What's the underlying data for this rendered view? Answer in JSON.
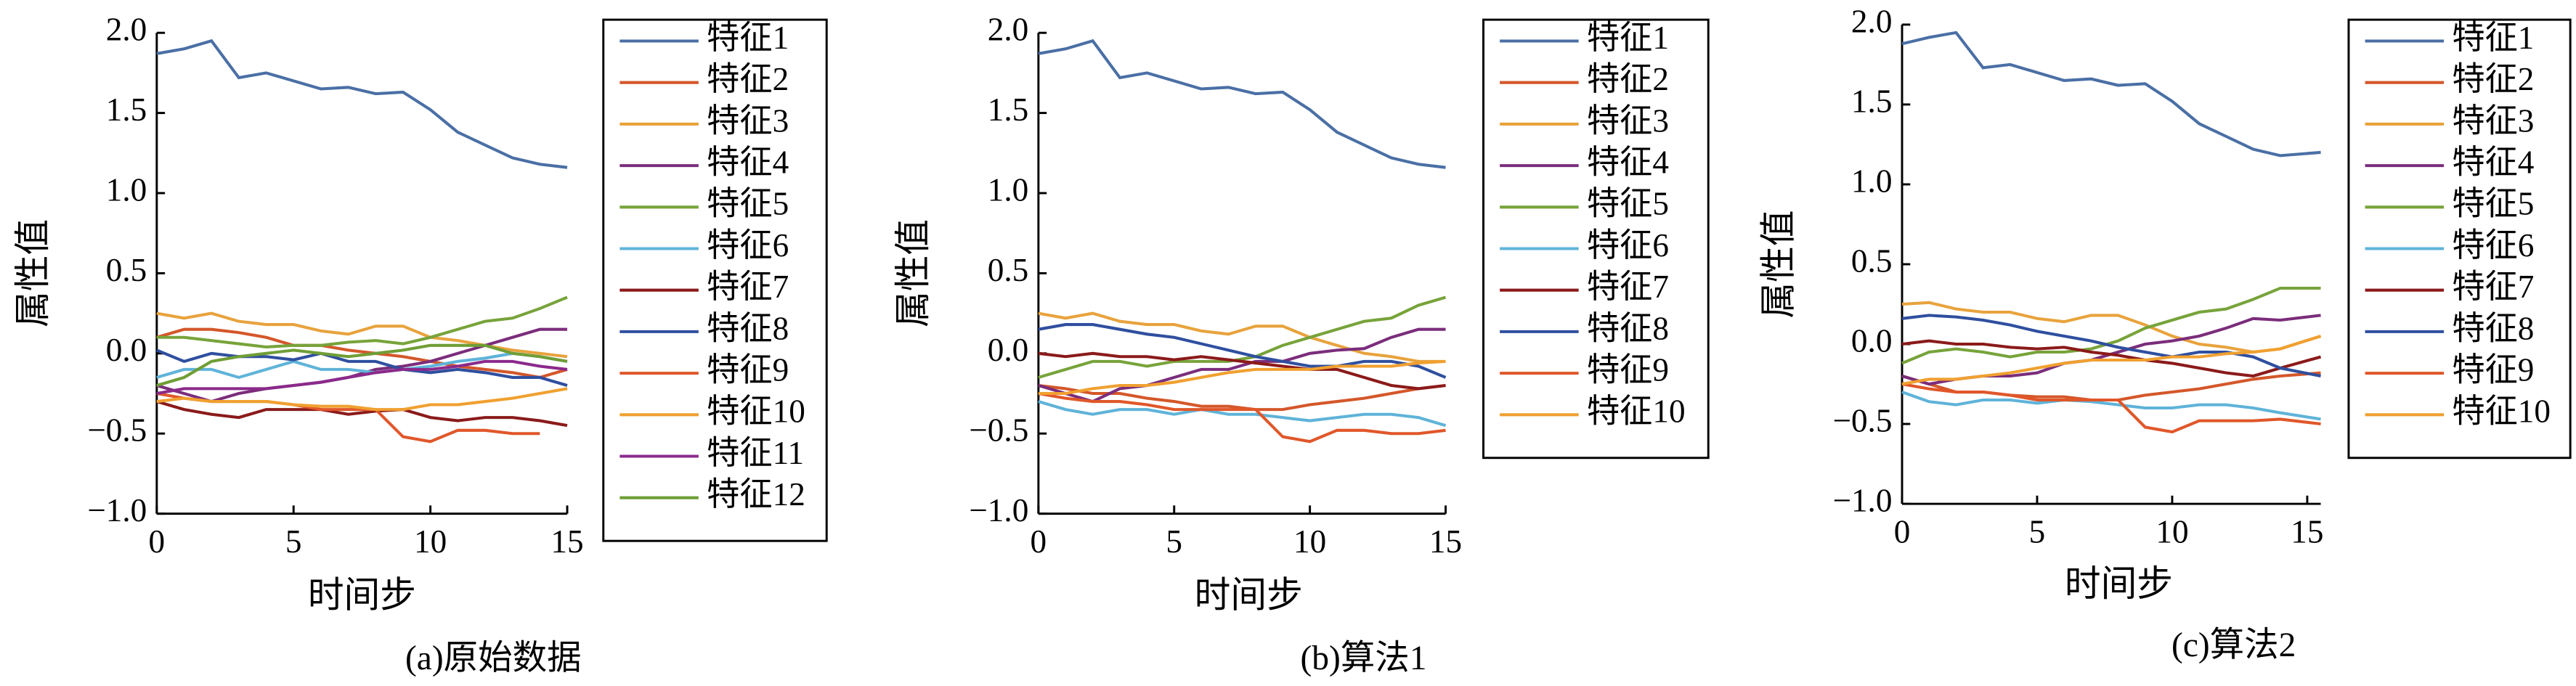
{
  "chart_data": [
    {
      "type": "line",
      "caption": "(a)原始数据",
      "xlabel": "时间步",
      "ylabel": "属性值",
      "x": [
        0,
        1,
        2,
        3,
        4,
        5,
        6,
        7,
        8,
        9,
        10,
        11,
        12,
        13,
        14,
        15
      ],
      "xlim": [
        0,
        15
      ],
      "xticks": [
        0,
        5,
        10,
        15
      ],
      "ylim": [
        -1,
        2
      ],
      "yticks": [
        {
          "value": 2,
          "label": "2.0"
        },
        {
          "value": 1.5,
          "label": "1.5"
        },
        {
          "value": 1,
          "label": "1.0"
        },
        {
          "value": 0.5,
          "label": "0.5"
        },
        {
          "value": 0,
          "label": "0.0"
        },
        {
          "value": -0.5,
          "label": "−0.5"
        },
        {
          "value": -1,
          "label": "−1.0"
        }
      ],
      "legend": "right",
      "series": [
        {
          "name": "特征1",
          "color": "#4a6fa5",
          "values": [
            1.87,
            1.9,
            1.95,
            1.72,
            1.75,
            1.7,
            1.65,
            1.66,
            1.62,
            1.63,
            1.52,
            1.38,
            1.3,
            1.22,
            1.18,
            1.16
          ]
        },
        {
          "name": "特征2",
          "color": "#d4572a",
          "values": [
            0.1,
            0.15,
            0.15,
            0.13,
            0.1,
            0.05,
            0.05,
            0.02,
            0,
            -0.02,
            -0.05,
            -0.08,
            -0.1,
            -0.12,
            -0.15,
            -0.1
          ]
        },
        {
          "name": "特征3",
          "color": "#e8a33d",
          "values": [
            0.25,
            0.22,
            0.25,
            0.2,
            0.18,
            0.18,
            0.14,
            0.12,
            0.17,
            0.17,
            0.1,
            0.08,
            0.05,
            0.02,
            0,
            -0.02
          ]
        },
        {
          "name": "特征4",
          "color": "#7b2d7b",
          "values": [
            -0.2,
            -0.25,
            -0.3,
            -0.25,
            -0.22,
            -0.2,
            -0.18,
            -0.15,
            -0.1,
            -0.08,
            -0.05,
            0,
            0.05,
            0.1,
            0.15,
            0.15
          ]
        },
        {
          "name": "特征5",
          "color": "#77a33a",
          "values": [
            0.1,
            0.1,
            0.08,
            0.06,
            0.04,
            0.05,
            0.05,
            0.07,
            0.08,
            0.06,
            0.1,
            0.15,
            0.2,
            0.22,
            0.28,
            0.35
          ]
        },
        {
          "name": "特征6",
          "color": "#5fb3d9",
          "values": [
            -0.15,
            -0.1,
            -0.1,
            -0.15,
            -0.1,
            -0.05,
            -0.1,
            -0.1,
            -0.12,
            -0.1,
            -0.08,
            -0.05,
            -0.03,
            0,
            -0.02,
            -0.05
          ]
        },
        {
          "name": "特征7",
          "color": "#8b1a1a",
          "values": [
            -0.3,
            -0.35,
            -0.38,
            -0.4,
            -0.35,
            -0.35,
            -0.35,
            -0.38,
            -0.36,
            -0.35,
            -0.4,
            -0.42,
            -0.4,
            -0.4,
            -0.42,
            -0.45
          ]
        },
        {
          "name": "特征8",
          "color": "#2f4f9f",
          "values": [
            0.02,
            -0.05,
            0,
            -0.02,
            -0.02,
            -0.04,
            0,
            -0.05,
            -0.05,
            -0.1,
            -0.12,
            -0.1,
            -0.12,
            -0.15,
            -0.15,
            -0.2
          ]
        },
        {
          "name": "特征9",
          "color": "#e0572a",
          "values": [
            -0.25,
            -0.28,
            -0.3,
            -0.3,
            -0.3,
            -0.32,
            -0.35,
            -0.35,
            -0.35,
            -0.52,
            -0.55,
            -0.48,
            -0.48,
            -0.5,
            -0.5,
            null
          ]
        },
        {
          "name": "特征10",
          "color": "#f0a030",
          "values": [
            -0.3,
            -0.28,
            -0.3,
            -0.3,
            -0.3,
            -0.32,
            -0.33,
            -0.33,
            -0.35,
            -0.35,
            -0.32,
            -0.32,
            -0.3,
            -0.28,
            -0.25,
            -0.22
          ]
        },
        {
          "name": "特征11",
          "color": "#8b2a8b",
          "values": [
            -0.25,
            -0.22,
            -0.22,
            -0.22,
            -0.22,
            -0.2,
            -0.18,
            -0.15,
            -0.12,
            -0.1,
            -0.1,
            -0.08,
            -0.05,
            -0.05,
            -0.08,
            -0.1
          ]
        },
        {
          "name": "特征12",
          "color": "#6f9e35",
          "values": [
            -0.2,
            -0.15,
            -0.05,
            -0.02,
            0,
            0.02,
            0,
            -0.02,
            0,
            0.02,
            0.05,
            0.05,
            0.05,
            0,
            -0.02,
            -0.05
          ]
        }
      ]
    },
    {
      "type": "line",
      "caption": "(b)算法1",
      "xlabel": "时间步",
      "ylabel": "属性值",
      "x": [
        0,
        1,
        2,
        3,
        4,
        5,
        6,
        7,
        8,
        9,
        10,
        11,
        12,
        13,
        14,
        15
      ],
      "xlim": [
        0,
        15
      ],
      "xticks": [
        0,
        5,
        10,
        15
      ],
      "ylim": [
        -1,
        2
      ],
      "yticks": [
        {
          "value": 2,
          "label": "2.0"
        },
        {
          "value": 1.5,
          "label": "1.5"
        },
        {
          "value": 1,
          "label": "1.0"
        },
        {
          "value": 0.5,
          "label": "0.5"
        },
        {
          "value": 0,
          "label": "0.0"
        },
        {
          "value": -0.5,
          "label": "−0.5"
        },
        {
          "value": -1,
          "label": "−1.0"
        }
      ],
      "legend": "right",
      "series": [
        {
          "name": "特征1",
          "color": "#4a6fa5",
          "values": [
            1.87,
            1.9,
            1.95,
            1.72,
            1.75,
            1.7,
            1.65,
            1.66,
            1.62,
            1.63,
            1.52,
            1.38,
            1.3,
            1.22,
            1.18,
            1.16
          ]
        },
        {
          "name": "特征2",
          "color": "#d4572a",
          "values": [
            -0.2,
            -0.22,
            -0.25,
            -0.25,
            -0.28,
            -0.3,
            -0.33,
            -0.33,
            -0.35,
            -0.35,
            -0.32,
            -0.3,
            -0.28,
            -0.25,
            -0.22,
            -0.2
          ]
        },
        {
          "name": "特征3",
          "color": "#e8a33d",
          "values": [
            0.25,
            0.22,
            0.25,
            0.2,
            0.18,
            0.18,
            0.14,
            0.12,
            0.17,
            0.17,
            0.1,
            0.05,
            0,
            -0.02,
            -0.05,
            -0.05
          ]
        },
        {
          "name": "特征4",
          "color": "#7b2d7b",
          "values": [
            -0.2,
            -0.25,
            -0.3,
            -0.22,
            -0.2,
            -0.15,
            -0.1,
            -0.1,
            -0.05,
            -0.05,
            0,
            0.02,
            0.03,
            0.1,
            0.15,
            0.15
          ]
        },
        {
          "name": "特征5",
          "color": "#77a33a",
          "values": [
            -0.15,
            -0.1,
            -0.05,
            -0.05,
            -0.08,
            -0.05,
            -0.05,
            -0.05,
            -0.02,
            0.05,
            0.1,
            0.15,
            0.2,
            0.22,
            0.3,
            0.35
          ]
        },
        {
          "name": "特征6",
          "color": "#5fb3d9",
          "values": [
            -0.3,
            -0.35,
            -0.38,
            -0.35,
            -0.35,
            -0.38,
            -0.35,
            -0.38,
            -0.38,
            -0.4,
            -0.42,
            -0.4,
            -0.38,
            -0.38,
            -0.4,
            -0.45
          ]
        },
        {
          "name": "特征7",
          "color": "#8b1a1a",
          "values": [
            0,
            -0.02,
            0,
            -0.02,
            -0.02,
            -0.04,
            -0.02,
            -0.04,
            -0.06,
            -0.08,
            -0.1,
            -0.1,
            -0.15,
            -0.2,
            -0.22,
            -0.2
          ]
        },
        {
          "name": "特征8",
          "color": "#2f4f9f",
          "values": [
            0.15,
            0.18,
            0.18,
            0.15,
            0.12,
            0.1,
            0.06,
            0.02,
            -0.02,
            -0.05,
            -0.08,
            -0.08,
            -0.05,
            -0.05,
            -0.08,
            -0.15
          ]
        },
        {
          "name": "特征9",
          "color": "#e0572a",
          "values": [
            -0.25,
            -0.28,
            -0.3,
            -0.3,
            -0.32,
            -0.35,
            -0.35,
            -0.35,
            -0.35,
            -0.52,
            -0.55,
            -0.48,
            -0.48,
            -0.5,
            -0.5,
            -0.48
          ]
        },
        {
          "name": "特征10",
          "color": "#f0a030",
          "values": [
            -0.25,
            -0.25,
            -0.22,
            -0.2,
            -0.2,
            -0.18,
            -0.15,
            -0.12,
            -0.1,
            -0.1,
            -0.1,
            -0.08,
            -0.08,
            -0.08,
            -0.06,
            -0.05
          ]
        }
      ]
    },
    {
      "type": "line",
      "caption": "(c)算法2",
      "xlabel": "时间步",
      "ylabel": "属性值",
      "x": [
        0,
        1,
        2,
        3,
        4,
        5,
        6,
        7,
        8,
        9,
        10,
        11,
        12,
        13,
        14,
        15.5
      ],
      "xlim": [
        0,
        15.5
      ],
      "xticks": [
        0,
        5,
        10,
        15
      ],
      "ylim": [
        -1,
        2
      ],
      "yticks": [
        {
          "value": 2,
          "label": "2.0"
        },
        {
          "value": 1.5,
          "label": "1.5"
        },
        {
          "value": 1,
          "label": "1.0"
        },
        {
          "value": 0.5,
          "label": "0.5"
        },
        {
          "value": 0,
          "label": "0.0"
        },
        {
          "value": -0.5,
          "label": "−0.5"
        },
        {
          "value": -1,
          "label": "−1.0"
        }
      ],
      "legend": "right",
      "series": [
        {
          "name": "特征1",
          "color": "#4a6fa5",
          "values": [
            1.88,
            1.92,
            1.95,
            1.73,
            1.75,
            1.7,
            1.65,
            1.66,
            1.62,
            1.63,
            1.52,
            1.38,
            1.3,
            1.22,
            1.18,
            1.2
          ]
        },
        {
          "name": "特征2",
          "color": "#d4572a",
          "values": [
            -0.2,
            -0.25,
            -0.3,
            -0.3,
            -0.32,
            -0.33,
            -0.33,
            -0.35,
            -0.35,
            -0.32,
            -0.3,
            -0.28,
            -0.25,
            -0.22,
            -0.2,
            -0.18
          ]
        },
        {
          "name": "特征3",
          "color": "#e8a33d",
          "values": [
            0.25,
            0.26,
            0.22,
            0.2,
            0.2,
            0.16,
            0.14,
            0.18,
            0.18,
            0.12,
            0.05,
            0,
            -0.02,
            -0.05,
            -0.03,
            0.05
          ]
        },
        {
          "name": "特征4",
          "color": "#7b2d7b",
          "values": [
            -0.2,
            -0.25,
            -0.22,
            -0.2,
            -0.2,
            -0.18,
            -0.12,
            -0.1,
            -0.05,
            0,
            0.02,
            0.05,
            0.1,
            0.16,
            0.15,
            0.18
          ]
        },
        {
          "name": "特征5",
          "color": "#77a33a",
          "values": [
            -0.12,
            -0.05,
            -0.03,
            -0.05,
            -0.08,
            -0.05,
            -0.05,
            -0.03,
            0.02,
            0.1,
            0.15,
            0.2,
            0.22,
            0.28,
            0.35,
            0.35
          ]
        },
        {
          "name": "特征6",
          "color": "#5fb3d9",
          "values": [
            -0.3,
            -0.36,
            -0.38,
            -0.35,
            -0.35,
            -0.37,
            -0.35,
            -0.36,
            -0.38,
            -0.4,
            -0.4,
            -0.38,
            -0.38,
            -0.4,
            -0.43,
            -0.47
          ]
        },
        {
          "name": "特征7",
          "color": "#8b1a1a",
          "values": [
            0,
            0.02,
            0,
            0,
            -0.02,
            -0.03,
            -0.02,
            -0.05,
            -0.07,
            -0.1,
            -0.12,
            -0.15,
            -0.18,
            -0.2,
            -0.15,
            -0.08
          ]
        },
        {
          "name": "特征8",
          "color": "#2f4f9f",
          "values": [
            0.16,
            0.18,
            0.17,
            0.15,
            0.12,
            0.08,
            0.05,
            0.02,
            -0.02,
            -0.05,
            -0.08,
            -0.05,
            -0.05,
            -0.08,
            -0.15,
            -0.2
          ]
        },
        {
          "name": "特征9",
          "color": "#e0572a",
          "values": [
            -0.25,
            -0.28,
            -0.3,
            -0.3,
            -0.32,
            -0.35,
            -0.35,
            -0.35,
            -0.35,
            -0.52,
            -0.55,
            -0.48,
            -0.48,
            -0.48,
            -0.47,
            -0.5
          ]
        },
        {
          "name": "特征10",
          "color": "#f0a030",
          "values": [
            -0.25,
            -0.22,
            -0.22,
            -0.2,
            -0.18,
            -0.15,
            -0.12,
            -0.1,
            -0.1,
            -0.1,
            -0.08,
            -0.08,
            -0.06,
            -0.05,
            -0.03,
            0.05
          ]
        }
      ]
    }
  ]
}
